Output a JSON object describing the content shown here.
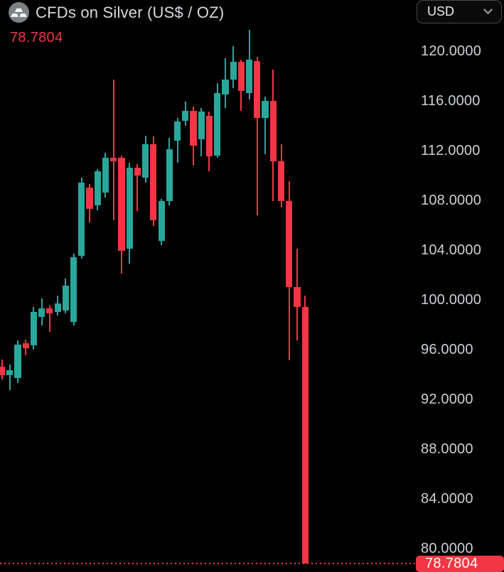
{
  "header": {
    "title": "CFDs on Silver (US$ / OZ)",
    "last_price": "78.7804",
    "instrument_icon": "silver-ingots-icon"
  },
  "currency_selector": {
    "value": "USD",
    "icon": "chevron-down-icon"
  },
  "colors": {
    "background": "#000000",
    "up": "#2aa79b",
    "down": "#f23645",
    "axis_text": "#cdd0d4",
    "title_text": "#d7dadd",
    "last_price_text": "#f23645",
    "badge_text": "#ffffff"
  },
  "chart_data": {
    "type": "candlestick",
    "title": "CFDs on Silver (US$ / OZ)",
    "currency": "USD",
    "grid": false,
    "legend_position": "none",
    "x_axis": {
      "visible": false,
      "labels": []
    },
    "y_axis": {
      "side": "right",
      "labels": [
        "120.0000",
        "116.0000",
        "112.0000",
        "108.0000",
        "104.0000",
        "100.0000",
        "96.0000",
        "92.0000",
        "88.0000",
        "84.0000",
        "80.0000"
      ],
      "step": 4,
      "visible_range": [
        78.5,
        122
      ]
    },
    "last_price": 78.7804,
    "last_price_label": "78.7804",
    "candles": [
      {
        "o": 94.6,
        "h": 95.2,
        "l": 93.6,
        "c": 93.9
      },
      {
        "o": 93.9,
        "h": 94.8,
        "l": 92.7,
        "c": 94.3
      },
      {
        "o": 93.7,
        "h": 96.7,
        "l": 93.3,
        "c": 96.4
      },
      {
        "o": 96.5,
        "h": 96.8,
        "l": 95.5,
        "c": 96.1
      },
      {
        "o": 96.3,
        "h": 99.4,
        "l": 96.0,
        "c": 99.0
      },
      {
        "o": 98.6,
        "h": 100.1,
        "l": 97.9,
        "c": 99.3
      },
      {
        "o": 99.3,
        "h": 99.5,
        "l": 97.4,
        "c": 98.9
      },
      {
        "o": 99.0,
        "h": 100.3,
        "l": 98.7,
        "c": 99.7
      },
      {
        "o": 99.1,
        "h": 101.7,
        "l": 98.9,
        "c": 101.1
      },
      {
        "o": 98.2,
        "h": 103.7,
        "l": 97.9,
        "c": 103.4
      },
      {
        "o": 103.5,
        "h": 109.8,
        "l": 103.3,
        "c": 109.4
      },
      {
        "o": 109.0,
        "h": 109.3,
        "l": 106.2,
        "c": 107.3
      },
      {
        "o": 107.6,
        "h": 110.5,
        "l": 107.2,
        "c": 110.3
      },
      {
        "o": 108.6,
        "h": 111.8,
        "l": 108.2,
        "c": 111.4
      },
      {
        "o": 111.4,
        "h": 117.7,
        "l": 106.4,
        "c": 111.1
      },
      {
        "o": 111.4,
        "h": 111.6,
        "l": 102.1,
        "c": 103.9
      },
      {
        "o": 104.1,
        "h": 111.0,
        "l": 102.9,
        "c": 110.6
      },
      {
        "o": 110.6,
        "h": 110.9,
        "l": 107.1,
        "c": 110.0
      },
      {
        "o": 109.8,
        "h": 113.2,
        "l": 109.4,
        "c": 112.5
      },
      {
        "o": 112.5,
        "h": 113.1,
        "l": 105.9,
        "c": 106.4
      },
      {
        "o": 104.7,
        "h": 108.1,
        "l": 104.4,
        "c": 107.9
      },
      {
        "o": 107.9,
        "h": 113.0,
        "l": 107.6,
        "c": 112.1
      },
      {
        "o": 112.8,
        "h": 114.6,
        "l": 111.0,
        "c": 114.3
      },
      {
        "o": 114.4,
        "h": 115.9,
        "l": 114.0,
        "c": 115.2
      },
      {
        "o": 115.2,
        "h": 115.5,
        "l": 110.8,
        "c": 112.4
      },
      {
        "o": 112.9,
        "h": 115.4,
        "l": 111.5,
        "c": 115.1
      },
      {
        "o": 114.8,
        "h": 115.1,
        "l": 110.3,
        "c": 111.5
      },
      {
        "o": 111.6,
        "h": 117.4,
        "l": 111.4,
        "c": 116.6
      },
      {
        "o": 116.5,
        "h": 119.4,
        "l": 115.4,
        "c": 117.7
      },
      {
        "o": 117.7,
        "h": 120.4,
        "l": 117.0,
        "c": 119.1
      },
      {
        "o": 119.1,
        "h": 119.3,
        "l": 115.2,
        "c": 116.8
      },
      {
        "o": 116.6,
        "h": 121.7,
        "l": 116.1,
        "c": 119.3
      },
      {
        "o": 119.2,
        "h": 119.5,
        "l": 106.8,
        "c": 114.6
      },
      {
        "o": 114.6,
        "h": 116.3,
        "l": 111.7,
        "c": 116.0
      },
      {
        "o": 116.0,
        "h": 118.5,
        "l": 107.9,
        "c": 111.1
      },
      {
        "o": 111.1,
        "h": 112.5,
        "l": 107.4,
        "c": 107.9
      },
      {
        "o": 107.9,
        "h": 109.5,
        "l": 95.1,
        "c": 101.0
      },
      {
        "o": 101.0,
        "h": 104.1,
        "l": 96.7,
        "c": 99.4
      },
      {
        "o": 99.4,
        "h": 100.3,
        "l": 78.7804,
        "c": 78.7804
      }
    ]
  }
}
